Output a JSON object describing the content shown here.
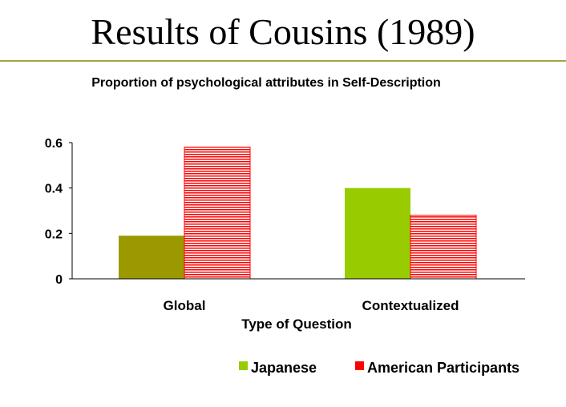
{
  "slide": {
    "title": "Results of Cousins (1989)"
  },
  "colors": {
    "rule": "#a3a33a",
    "japanese_global": "#9a9a00",
    "japanese_legend": "#99cc00",
    "american": "#ff0000",
    "american_stripe_bg": "#ffffff"
  },
  "chart_data": {
    "type": "bar",
    "title": "Proportion of psychological attributes in Self-Description",
    "xlabel": "Type of Question",
    "ylabel": "",
    "categories": [
      "Global",
      "Contextualized"
    ],
    "series": [
      {
        "name": "Japanese",
        "values": [
          0.19,
          0.4
        ]
      },
      {
        "name": "American Participants",
        "values": [
          0.58,
          0.28
        ]
      }
    ],
    "ylim": [
      0,
      0.6
    ],
    "yticks": [
      0,
      0.2,
      0.4,
      0.6
    ],
    "ytick_labels": [
      "0",
      "0.2",
      "0.4",
      "0.6"
    ],
    "grid": false,
    "legend_position": "bottom-right"
  }
}
